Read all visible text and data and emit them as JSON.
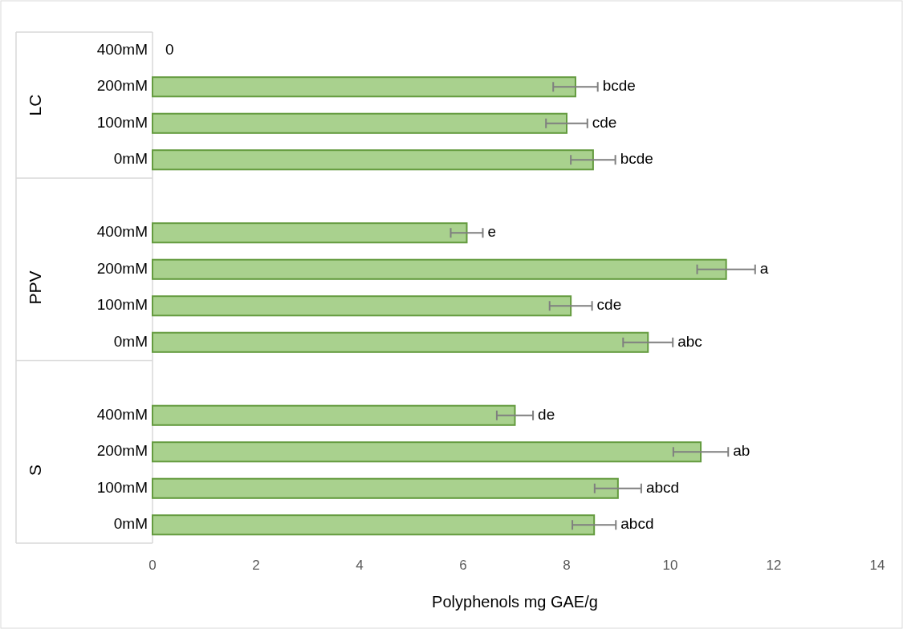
{
  "chart_data": [
    {
      "type": "bar",
      "orientation": "horizontal",
      "ylabel": "LC",
      "categories": [
        "400mM",
        "200mM",
        "100mM",
        "0mM"
      ],
      "values": [
        0,
        8.17,
        8.0,
        8.51
      ],
      "errors": [
        null,
        0.43,
        0.4,
        0.43
      ],
      "value_labels": [
        "0",
        "bcde",
        "cde",
        "bcde"
      ],
      "color": "#a9d18e",
      "xlim": [
        0,
        14
      ],
      "tick_labels": "y",
      "grid": false
    },
    {
      "type": "bar",
      "orientation": "horizontal",
      "ylabel": "PPV",
      "categories": [
        "400mM",
        "200mM",
        "100mM",
        "0mM"
      ],
      "values": [
        6.07,
        11.08,
        8.08,
        9.57
      ],
      "errors": [
        0.31,
        0.56,
        0.41,
        0.48
      ],
      "value_labels": [
        "e",
        "a",
        "cde",
        "abc"
      ],
      "color": "#a9d18e",
      "xlim": [
        0,
        14
      ],
      "tick_labels": "y",
      "grid": false
    },
    {
      "type": "bar",
      "orientation": "horizontal",
      "ylabel": "S",
      "xlabel": "Polyphenols mg GAE/g",
      "categories": [
        "400mM",
        "200mM",
        "100mM",
        "0mM"
      ],
      "values": [
        7.0,
        10.59,
        8.99,
        8.53
      ],
      "errors": [
        0.35,
        0.53,
        0.45,
        0.42
      ],
      "value_labels": [
        "de",
        "ab",
        "abcd",
        "abcd"
      ],
      "color": "#a9d18e",
      "xlim": [
        0,
        14
      ],
      "xticks": [
        0,
        2,
        4,
        6,
        8,
        10,
        12,
        14
      ],
      "grid": false
    }
  ]
}
